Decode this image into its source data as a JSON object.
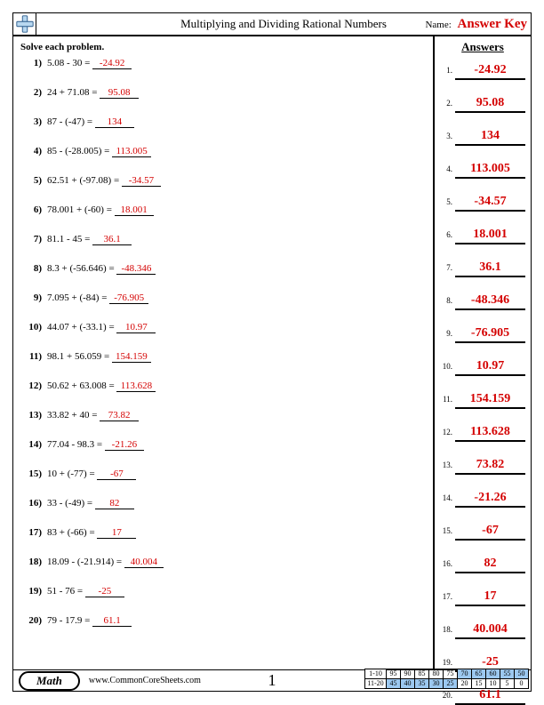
{
  "header": {
    "title": "Multiplying and Dividing Rational Numbers",
    "name_label": "Name:",
    "answer_key": "Answer Key"
  },
  "instructions": "Solve each problem.",
  "answers_heading": "Answers",
  "problems": [
    {
      "n": "1)",
      "expr": "5.08 - 30 = ",
      "ans": "-24.92"
    },
    {
      "n": "2)",
      "expr": "24 + 71.08 = ",
      "ans": "95.08"
    },
    {
      "n": "3)",
      "expr": "87 - (-47) = ",
      "ans": "134"
    },
    {
      "n": "4)",
      "expr": "85 - (-28.005) = ",
      "ans": "113.005"
    },
    {
      "n": "5)",
      "expr": "62.51 + (-97.08) = ",
      "ans": "-34.57"
    },
    {
      "n": "6)",
      "expr": "78.001 + (-60) = ",
      "ans": "18.001"
    },
    {
      "n": "7)",
      "expr": "81.1 - 45 = ",
      "ans": "36.1"
    },
    {
      "n": "8)",
      "expr": "8.3 + (-56.646) = ",
      "ans": "-48.346"
    },
    {
      "n": "9)",
      "expr": "7.095 + (-84) = ",
      "ans": "-76.905"
    },
    {
      "n": "10)",
      "expr": "44.07 + (-33.1) = ",
      "ans": "10.97"
    },
    {
      "n": "11)",
      "expr": "98.1 + 56.059 = ",
      "ans": "154.159"
    },
    {
      "n": "12)",
      "expr": "50.62 + 63.008 = ",
      "ans": "113.628"
    },
    {
      "n": "13)",
      "expr": "33.82 + 40 = ",
      "ans": "73.82"
    },
    {
      "n": "14)",
      "expr": "77.04 - 98.3 = ",
      "ans": "-21.26"
    },
    {
      "n": "15)",
      "expr": "10 + (-77) = ",
      "ans": "-67"
    },
    {
      "n": "16)",
      "expr": "33 - (-49) = ",
      "ans": "82"
    },
    {
      "n": "17)",
      "expr": "83 + (-66) = ",
      "ans": "17"
    },
    {
      "n": "18)",
      "expr": "18.09 - (-21.914) = ",
      "ans": "40.004"
    },
    {
      "n": "19)",
      "expr": "51 - 76 = ",
      "ans": "-25"
    },
    {
      "n": "20)",
      "expr": "79 - 17.9 = ",
      "ans": "61.1"
    }
  ],
  "footer": {
    "math": "Math",
    "site": "www.CommonCoreSheets.com",
    "page": "1",
    "score_rows": [
      {
        "label": "1-10",
        "vals": [
          "95",
          "90",
          "85",
          "80",
          "75",
          "70",
          "65",
          "60",
          "55",
          "50"
        ],
        "hl_from": 5
      },
      {
        "label": "11-20",
        "vals": [
          "45",
          "40",
          "35",
          "30",
          "25",
          "20",
          "15",
          "10",
          "5",
          "0"
        ],
        "hl_from": 0,
        "hl_to": 5
      }
    ]
  },
  "style": {
    "answer_color": "#d40000",
    "highlight_color": "#9cc8f0",
    "font_problem": 11,
    "font_answer": 14
  }
}
